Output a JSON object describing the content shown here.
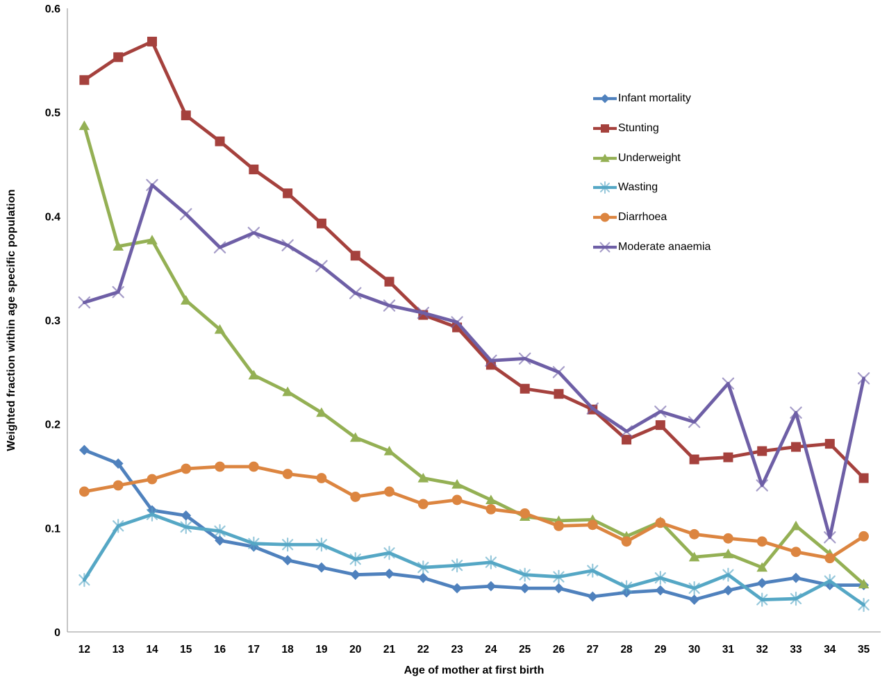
{
  "figure": {
    "background": "#ffffff",
    "axis_line_color": "#A6A6A6",
    "text_color": "#000000"
  },
  "chart_data": {
    "type": "line",
    "title": "",
    "xlabel": "Age of mother at first birth",
    "ylabel": "Weighted fraction within age specific population",
    "x": [
      12,
      13,
      14,
      15,
      16,
      17,
      18,
      19,
      20,
      21,
      22,
      23,
      24,
      25,
      26,
      27,
      28,
      29,
      30,
      31,
      32,
      33,
      34,
      35
    ],
    "ylim": [
      0,
      0.6
    ],
    "yticks": [
      0,
      0.1,
      0.2,
      0.3,
      0.4,
      0.5,
      0.6
    ],
    "ytick_labels": [
      "0",
      "0.1",
      "0.2",
      "0.3",
      "0.4",
      "0.5",
      "0.6"
    ],
    "grid": false,
    "legend_position": "inside-upper-right",
    "series": [
      {
        "name": "Infant mortality",
        "color": "#4F81BD",
        "marker": "diamond",
        "values": [
          0.175,
          0.162,
          0.117,
          0.112,
          0.088,
          0.082,
          0.069,
          0.062,
          0.055,
          0.056,
          0.052,
          0.042,
          0.044,
          0.042,
          0.042,
          0.034,
          0.038,
          0.04,
          0.031,
          0.04,
          0.047,
          0.052,
          0.045,
          0.045
        ]
      },
      {
        "name": "Stunting",
        "color": "#A5413D",
        "marker": "square",
        "values": [
          0.531,
          0.553,
          0.568,
          0.497,
          0.472,
          0.445,
          0.422,
          0.393,
          0.362,
          0.337,
          0.305,
          0.293,
          0.257,
          0.234,
          0.229,
          0.214,
          0.185,
          0.199,
          0.166,
          0.168,
          0.174,
          0.178,
          0.181,
          0.148
        ]
      },
      {
        "name": "Underweight",
        "color": "#94B054",
        "marker": "triangle",
        "values": [
          0.487,
          0.371,
          0.377,
          0.319,
          0.291,
          0.247,
          0.231,
          0.211,
          0.187,
          0.174,
          0.148,
          0.142,
          0.127,
          0.111,
          0.107,
          0.108,
          0.092,
          0.106,
          0.072,
          0.075,
          0.062,
          0.102,
          0.075,
          0.046
        ]
      },
      {
        "name": "Wasting",
        "color": "#55A7C5",
        "marker": "asterisk",
        "values": [
          0.05,
          0.102,
          0.113,
          0.101,
          0.097,
          0.085,
          0.084,
          0.084,
          0.07,
          0.076,
          0.062,
          0.064,
          0.067,
          0.055,
          0.053,
          0.059,
          0.043,
          0.052,
          0.042,
          0.055,
          0.031,
          0.032,
          0.049,
          0.026
        ]
      },
      {
        "name": "Diarrhoea",
        "color": "#DC8540",
        "marker": "circle",
        "values": [
          0.135,
          0.141,
          0.147,
          0.157,
          0.159,
          0.159,
          0.152,
          0.148,
          0.13,
          0.135,
          0.123,
          0.127,
          0.118,
          0.114,
          0.102,
          0.103,
          0.087,
          0.105,
          0.094,
          0.09,
          0.087,
          0.077,
          0.071,
          0.092
        ]
      },
      {
        "name": "Moderate anaemia",
        "color": "#6E5FA6",
        "marker": "x",
        "values": [
          0.317,
          0.327,
          0.43,
          0.402,
          0.37,
          0.384,
          0.372,
          0.352,
          0.326,
          0.314,
          0.307,
          0.298,
          0.261,
          0.263,
          0.25,
          0.215,
          0.193,
          0.212,
          0.202,
          0.239,
          0.141,
          0.211,
          0.091,
          0.244
        ]
      }
    ]
  }
}
